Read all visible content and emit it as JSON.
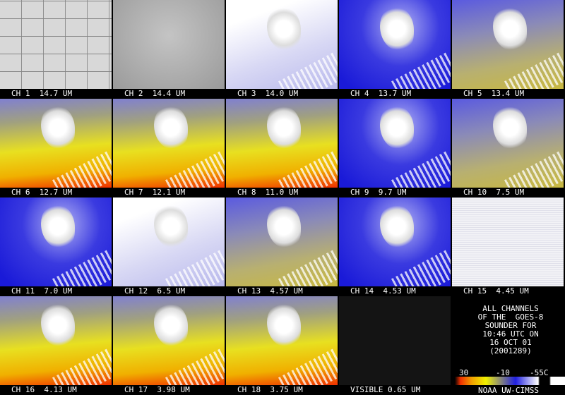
{
  "panels": [
    {
      "label": "CH 1  14.7 UM"
    },
    {
      "label": "CH 2  14.4 UM"
    },
    {
      "label": "CH 3  14.0 UM"
    },
    {
      "label": "CH 4  13.7 UM"
    },
    {
      "label": "CH 5  13.4 UM"
    },
    {
      "label": "CH 6  12.7 UM"
    },
    {
      "label": "CH 7  12.1 UM"
    },
    {
      "label": "CH 8  11.0 UM"
    },
    {
      "label": "CH 9  9.7 UM"
    },
    {
      "label": "CH 10  7.5 UM"
    },
    {
      "label": "CH 11  7.0 UM"
    },
    {
      "label": "CH 12  6.5 UM"
    },
    {
      "label": "CH 13  4.57 UM"
    },
    {
      "label": "CH 14  4.53 UM"
    },
    {
      "label": "CH 15  4.45 UM"
    },
    {
      "label": "CH 16  4.13 UM"
    },
    {
      "label": "CH 17  3.98 UM"
    },
    {
      "label": "CH 18  3.75 UM"
    },
    {
      "label": "VISIBLE 0.65 UM"
    }
  ],
  "info": {
    "lines": [
      "ALL CHANNELS",
      "OF THE  GOES-8",
      "SOUNDER FOR",
      "10:46 UTC ON",
      "16 OCT 01",
      "(2001289)"
    ],
    "scale_labels": [
      "30",
      "-10",
      "-55C"
    ],
    "credit": "NOAA UW-CIMSS"
  }
}
